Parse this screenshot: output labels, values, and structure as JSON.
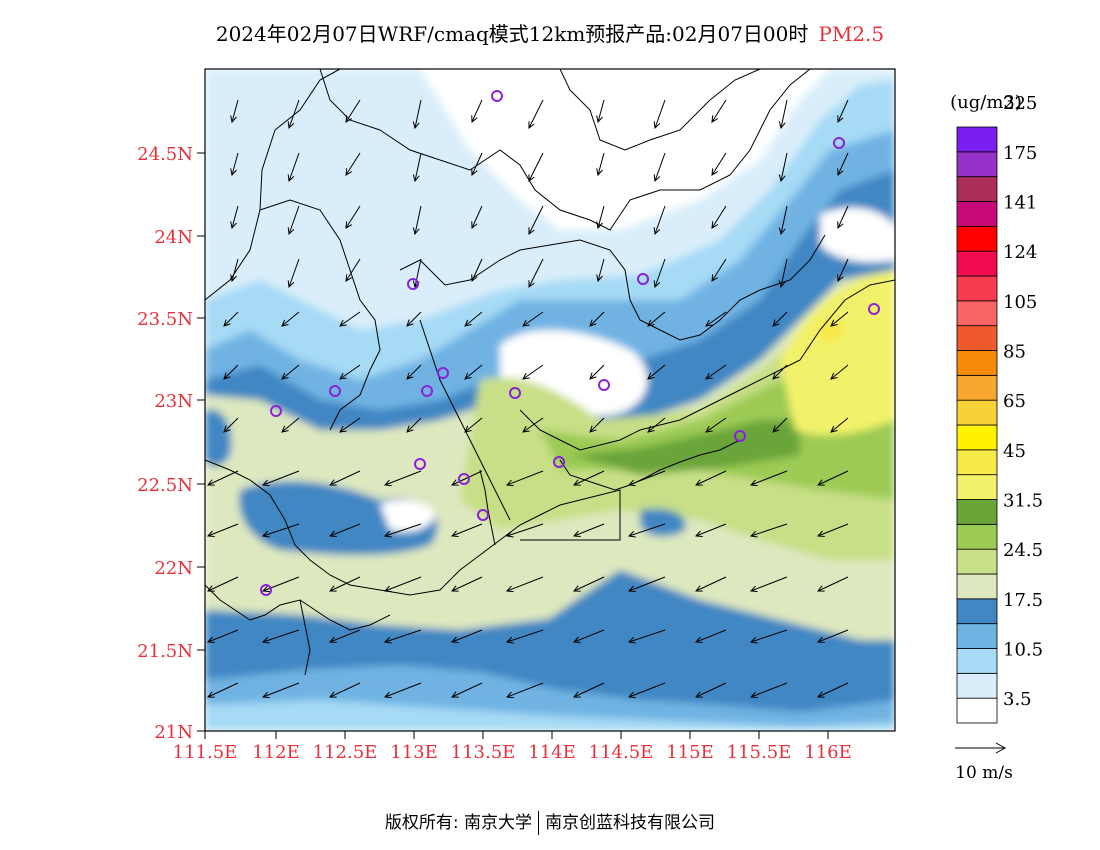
{
  "title": {
    "main": "2024年02月07日WRF/cmaq模式12km预报产品:02月07日00时",
    "species": "PM2.5"
  },
  "map": {
    "lat_ticks": [
      "24.5N",
      "24N",
      "23.5N",
      "23N",
      "22.5N",
      "22N",
      "21.5N",
      "21N"
    ],
    "lon_ticks": [
      "111.5E",
      "112E",
      "112.5E",
      "113E",
      "113.5E",
      "114E",
      "114.5E",
      "115E",
      "115.5E",
      "116E"
    ],
    "axis_label_color": "#e8303a"
  },
  "legend": {
    "unit": "(ug/m3)",
    "colors": [
      "#ffffff",
      "#d9eefa",
      "#a6daf5",
      "#6fb3e3",
      "#4087c3",
      "#dde8bf",
      "#c7df86",
      "#9ccb55",
      "#6aa53a",
      "#f2f26a",
      "#f8e94a",
      "#fff200",
      "#f7d135",
      "#f7a72f",
      "#f88a07",
      "#ef5a2c",
      "#f86464",
      "#f73c50",
      "#f20a50",
      "#ff0000",
      "#c80a78",
      "#aa2d5a",
      "#9632c8",
      "#7d1ef0"
    ],
    "labels": [
      "3.5",
      "10.5",
      "17.5",
      "24.5",
      "31.5",
      "45",
      "65",
      "85",
      "105",
      "124",
      "141",
      "175",
      "225"
    ]
  },
  "wind": {
    "scale_label": "10  m/s"
  },
  "footer": {
    "left": "版权所有: 南京大学",
    "right": "南京创蓝科技有限公司"
  }
}
